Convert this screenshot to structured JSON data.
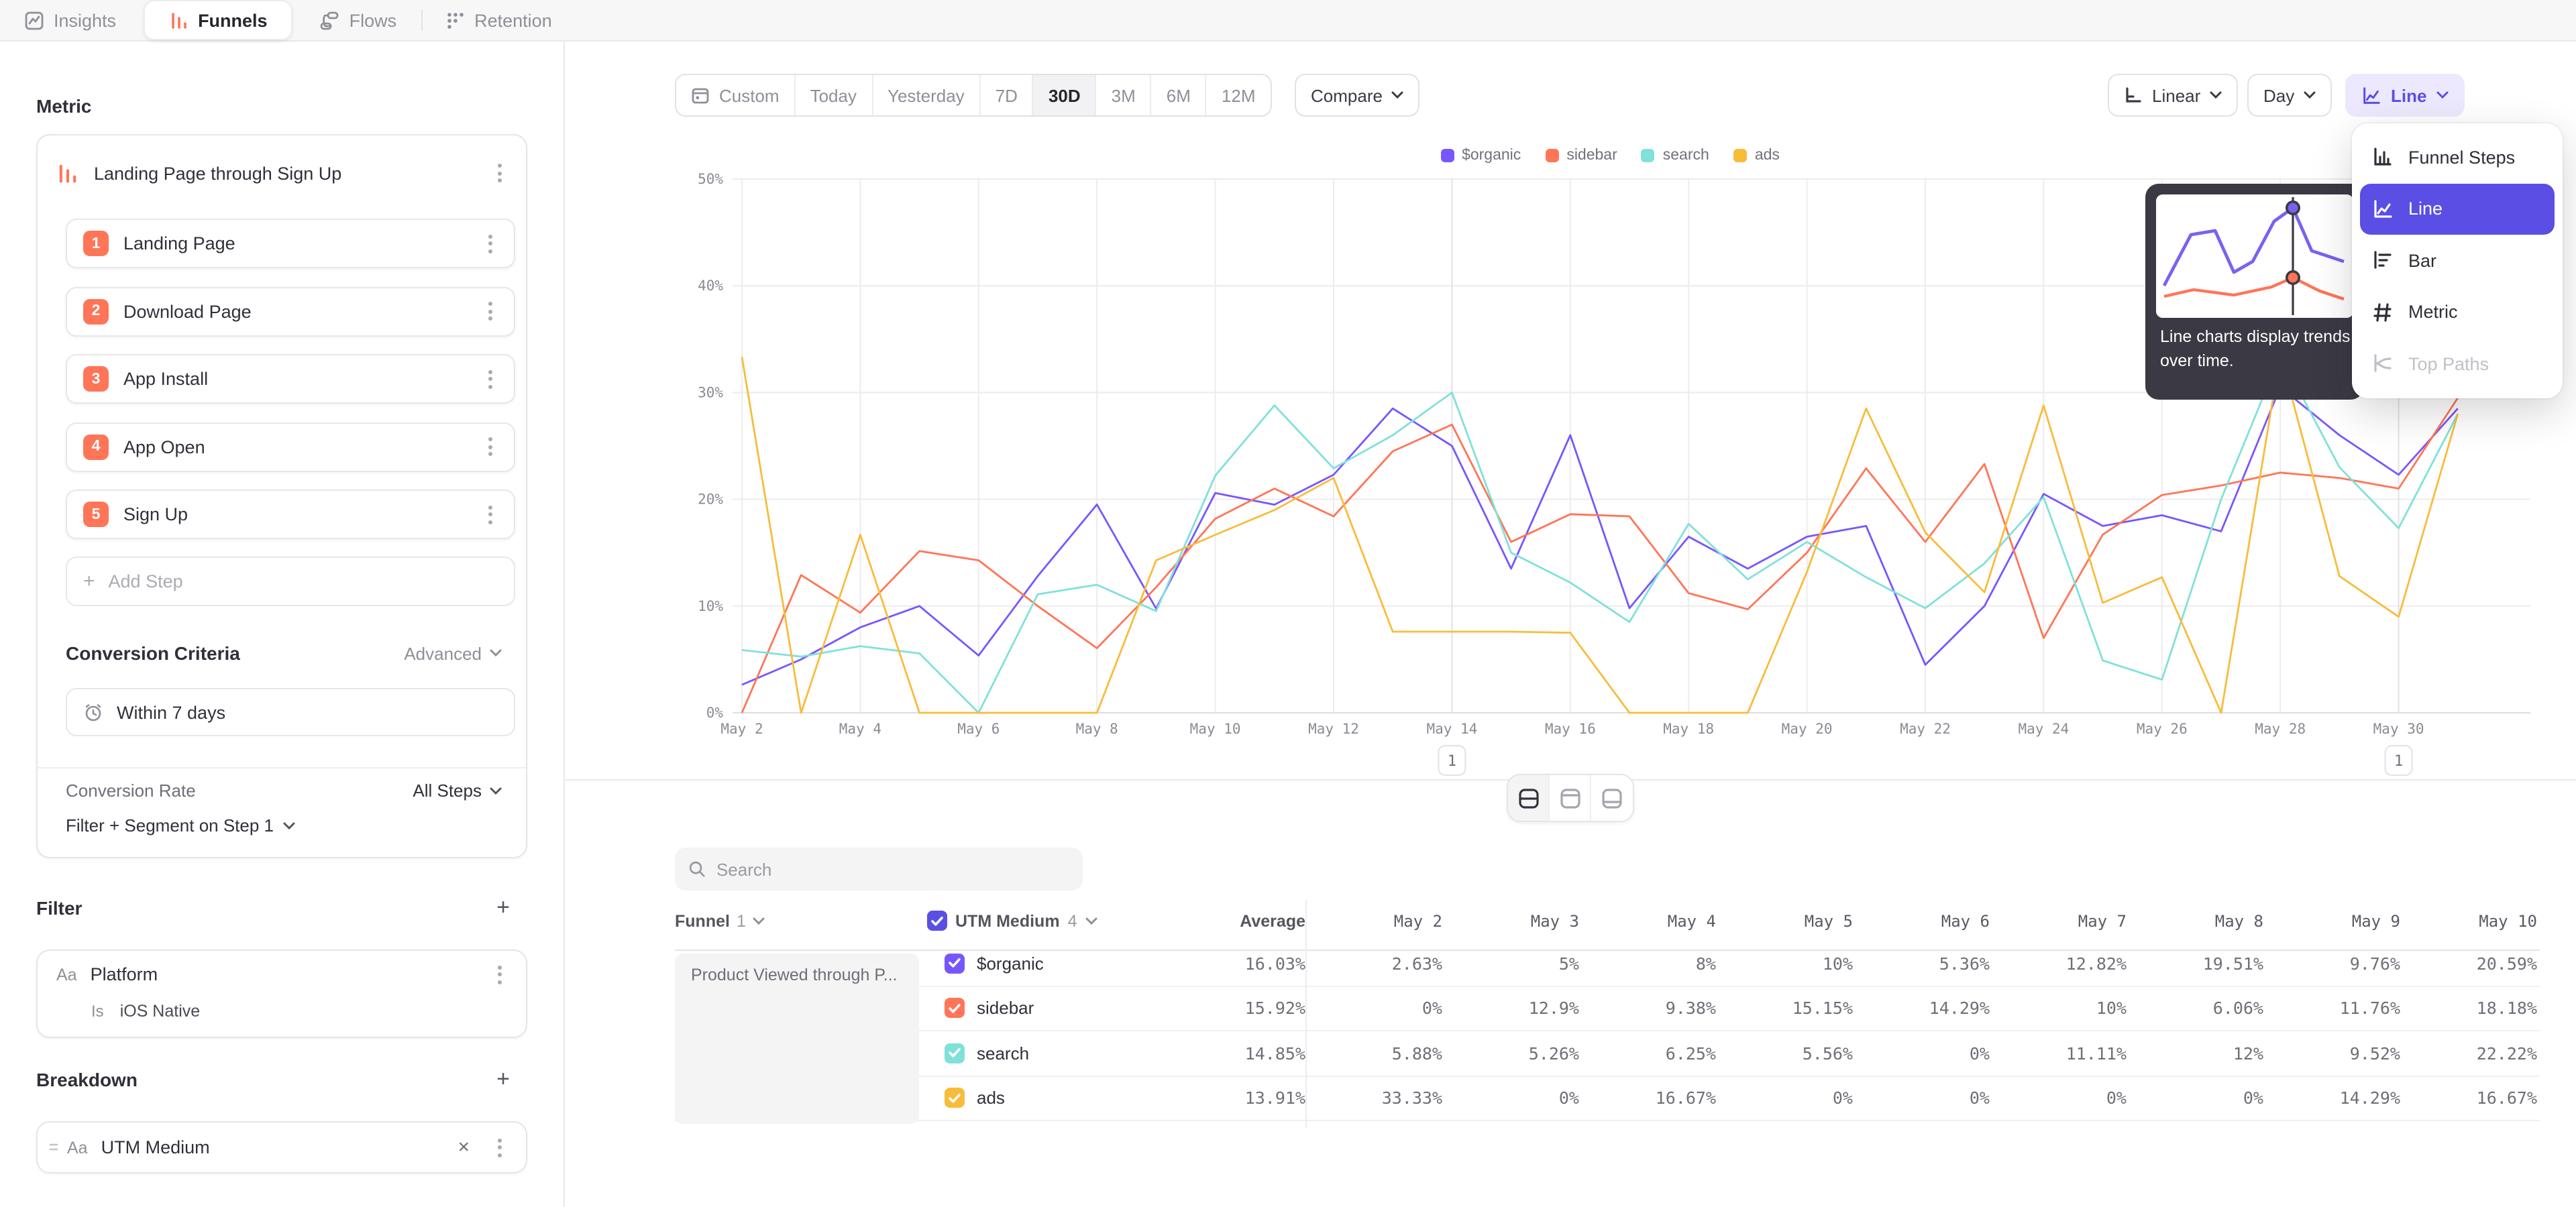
{
  "app": {
    "tabs": [
      {
        "label": "Insights"
      },
      {
        "label": "Funnels",
        "active": true
      },
      {
        "label": "Flows"
      },
      {
        "label": "Retention"
      }
    ]
  },
  "sidebar": {
    "metric_header": "Metric",
    "funnel": {
      "title": "Landing Page through Sign Up",
      "steps": [
        {
          "num": "1",
          "label": "Landing Page"
        },
        {
          "num": "2",
          "label": "Download Page"
        },
        {
          "num": "3",
          "label": "App Install"
        },
        {
          "num": "4",
          "label": "App Open"
        },
        {
          "num": "5",
          "label": "Sign Up"
        }
      ],
      "add_step_label": "Add Step"
    },
    "conversion_criteria": {
      "header": "Conversion Criteria",
      "mode": "Advanced",
      "window": "Within 7 days"
    },
    "conversion_rate": {
      "label": "Conversion Rate",
      "value": "All Steps"
    },
    "filter_segment_label": "Filter + Segment on Step 1",
    "filter": {
      "header": "Filter",
      "property": {
        "type": "Aa",
        "name": "Platform",
        "operator": "Is",
        "value": "iOS Native"
      }
    },
    "breakdown": {
      "header": "Breakdown",
      "property": {
        "type": "Aa",
        "name": "UTM Medium"
      }
    }
  },
  "toolbar": {
    "ranges": [
      "Custom",
      "Today",
      "Yesterday",
      "7D",
      "30D",
      "3M",
      "6M",
      "12M"
    ],
    "active_range": "30D",
    "compare_label": "Compare",
    "scale_label": "Linear",
    "granularity_label": "Day",
    "chart_type_label": "Line"
  },
  "chart_menu": {
    "items": [
      {
        "label": "Funnel Steps",
        "icon": "funnel-steps-icon"
      },
      {
        "label": "Line",
        "icon": "line-icon",
        "selected": true
      },
      {
        "label": "Bar",
        "icon": "bar-icon"
      },
      {
        "label": "Metric",
        "icon": "metric-icon"
      },
      {
        "label": "Top Paths",
        "icon": "top-paths-icon",
        "disabled": true
      }
    ],
    "tooltip_text": "Line charts display trends over time."
  },
  "chart_data": {
    "type": "line",
    "title": "",
    "xlabel": "",
    "ylabel": "",
    "ylim": [
      0,
      50
    ],
    "y_tick_labels": [
      "0%",
      "10%",
      "20%",
      "30%",
      "40%",
      "50%"
    ],
    "grid": true,
    "legend_position": "top",
    "x": [
      "May 2",
      "May 3",
      "May 4",
      "May 5",
      "May 6",
      "May 7",
      "May 8",
      "May 9",
      "May 10",
      "May 11",
      "May 12",
      "May 13",
      "May 14",
      "May 15",
      "May 16",
      "May 17",
      "May 18",
      "May 19",
      "May 20",
      "May 21",
      "May 22",
      "May 23",
      "May 24",
      "May 25",
      "May 26",
      "May 27",
      "May 28",
      "May 29",
      "May 30",
      "May 31"
    ],
    "x_tick_labels": [
      "May 2",
      "May 4",
      "May 6",
      "May 8",
      "May 10",
      "May 12",
      "May 14",
      "May 16",
      "May 18",
      "May 20",
      "May 22",
      "May 24",
      "May 26",
      "May 28",
      "May 30"
    ],
    "series": [
      {
        "name": "$organic",
        "color": "#7856FF",
        "values": [
          2.63,
          5,
          8,
          10,
          5.36,
          12.82,
          19.51,
          9.76,
          20.59,
          19.5,
          22.3,
          28.5,
          25,
          13.5,
          26,
          9.8,
          16.5,
          13.5,
          16.5,
          17.5,
          4.5,
          10,
          20.5,
          17.5,
          18.5,
          17,
          30.5,
          26,
          22.3,
          28.5
        ]
      },
      {
        "name": "sidebar",
        "color": "#FF7557",
        "values": [
          0,
          12.9,
          9.38,
          15.15,
          14.29,
          10,
          6.06,
          11.76,
          18.18,
          21,
          18.4,
          24.5,
          27,
          16,
          18.6,
          18.4,
          11.2,
          9.7,
          15,
          22.9,
          16,
          23.3,
          7,
          16.7,
          20.4,
          21.3,
          22.5,
          22,
          21,
          29.5
        ]
      },
      {
        "name": "search",
        "color": "#80E1D9",
        "values": [
          5.88,
          5.26,
          6.25,
          5.56,
          0,
          11.11,
          12,
          9.52,
          22.22,
          28.8,
          22.9,
          26,
          30,
          15,
          12.2,
          8.5,
          17.7,
          12.5,
          16,
          12.7,
          9.8,
          14,
          20.2,
          4.9,
          3.1,
          20,
          33.5,
          23,
          17.3,
          28
        ]
      },
      {
        "name": "ads",
        "color": "#F8BC3B",
        "values": [
          33.33,
          0,
          16.67,
          0,
          0,
          0,
          0,
          14.29,
          16.67,
          19,
          22,
          7.6,
          7.6,
          7.6,
          7.5,
          0,
          0,
          0,
          13.2,
          28.5,
          16.9,
          11.3,
          28.8,
          10.3,
          12.7,
          0,
          33.6,
          12.8,
          9,
          28
        ]
      }
    ],
    "annotations": [
      {
        "day": "May 14",
        "label": "1"
      },
      {
        "day": "May 30",
        "label": "1"
      }
    ]
  },
  "table": {
    "search_placeholder": "Search",
    "funnel_col": {
      "label": "Funnel",
      "count": "1"
    },
    "breakdown_col": {
      "label": "UTM Medium",
      "count": "4"
    },
    "average_label": "Average",
    "date_cols": [
      "May 2",
      "May 3",
      "May 4",
      "May 5",
      "May 6",
      "May 7",
      "May 8",
      "May 9",
      "May 10"
    ],
    "funnel_cell": "Product Viewed through P...",
    "rows": [
      {
        "name": "$organic",
        "color": "#7856FF",
        "average": "16.03%",
        "values": [
          "2.63%",
          "5%",
          "8%",
          "10%",
          "5.36%",
          "12.82%",
          "19.51%",
          "9.76%",
          "20.59%"
        ]
      },
      {
        "name": "sidebar",
        "color": "#FF7557",
        "average": "15.92%",
        "values": [
          "0%",
          "12.9%",
          "9.38%",
          "15.15%",
          "14.29%",
          "10%",
          "6.06%",
          "11.76%",
          "18.18%"
        ]
      },
      {
        "name": "search",
        "color": "#80E1D9",
        "average": "14.85%",
        "values": [
          "5.88%",
          "5.26%",
          "6.25%",
          "5.56%",
          "0%",
          "11.11%",
          "12%",
          "9.52%",
          "22.22%"
        ]
      },
      {
        "name": "ads",
        "color": "#F8BC3B",
        "average": "13.91%",
        "values": [
          "33.33%",
          "0%",
          "16.67%",
          "0%",
          "0%",
          "0%",
          "0%",
          "14.29%",
          "16.67%"
        ]
      }
    ]
  },
  "colors": {
    "accent": "#5B4EE4",
    "accent_light": "#ECE8FD",
    "brand_orange": "#FF7557",
    "grid": "#ECECEE",
    "axis_text": "#8A8A93"
  }
}
